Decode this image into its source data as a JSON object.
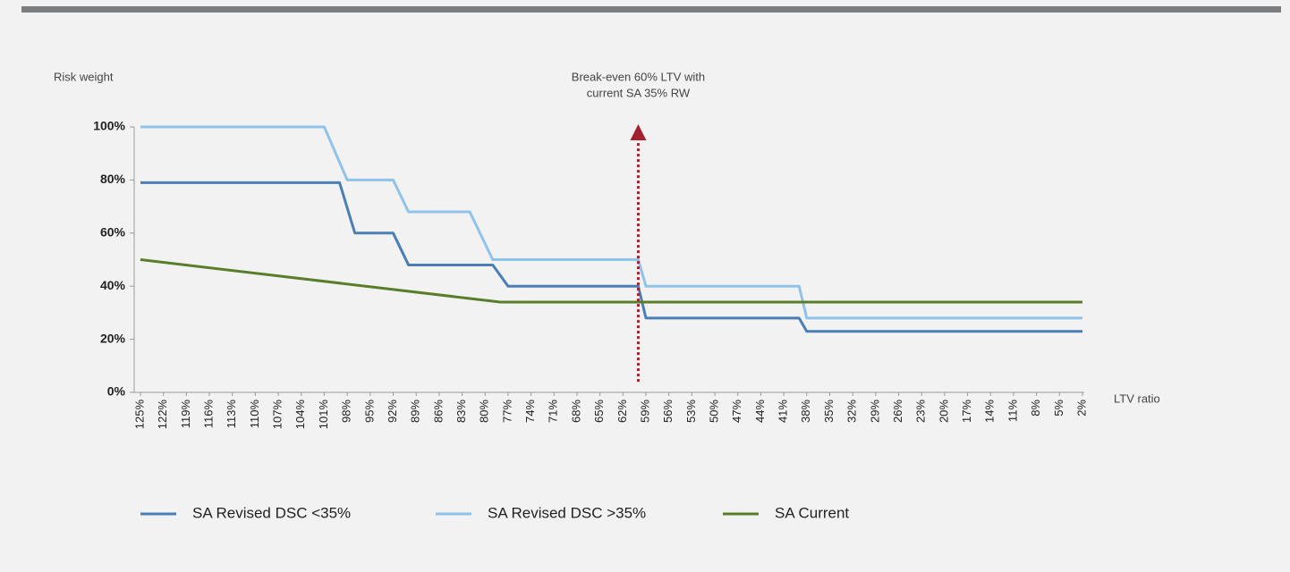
{
  "chart_data": {
    "type": "line",
    "y_label": "Risk weight",
    "x_label": "LTV ratio",
    "annotation": {
      "text": [
        "Break-even 60% LTV with",
        "current SA 35% RW"
      ],
      "x": 60,
      "y": [
        4,
        101
      ],
      "color": "#a3202f"
    },
    "xlim": [
      125,
      2
    ],
    "xticks": [
      {
        "value": 125,
        "label": "125%"
      },
      {
        "value": 122,
        "label": "122%"
      },
      {
        "value": 119,
        "label": "119%"
      },
      {
        "value": 116,
        "label": "116%"
      },
      {
        "value": 113,
        "label": "113%"
      },
      {
        "value": 110,
        "label": "110%"
      },
      {
        "value": 107,
        "label": "107%"
      },
      {
        "value": 104,
        "label": "104%"
      },
      {
        "value": 101,
        "label": "101%"
      },
      {
        "value": 98,
        "label": "98%"
      },
      {
        "value": 95,
        "label": "95%"
      },
      {
        "value": 92,
        "label": "92%"
      },
      {
        "value": 89,
        "label": "89%"
      },
      {
        "value": 86,
        "label": "86%"
      },
      {
        "value": 83,
        "label": "83%"
      },
      {
        "value": 80,
        "label": "80%"
      },
      {
        "value": 77,
        "label": "77%"
      },
      {
        "value": 74,
        "label": "74%"
      },
      {
        "value": 71,
        "label": "71%"
      },
      {
        "value": 68,
        "label": "68%"
      },
      {
        "value": 65,
        "label": "65%"
      },
      {
        "value": 62,
        "label": "62%"
      },
      {
        "value": 59,
        "label": "59%"
      },
      {
        "value": 56,
        "label": "56%"
      },
      {
        "value": 53,
        "label": "53%"
      },
      {
        "value": 50,
        "label": "50%"
      },
      {
        "value": 47,
        "label": "47%"
      },
      {
        "value": 44,
        "label": "44%"
      },
      {
        "value": 41,
        "label": "41%"
      },
      {
        "value": 38,
        "label": "38%"
      },
      {
        "value": 35,
        "label": "35%"
      },
      {
        "value": 32,
        "label": "32%"
      },
      {
        "value": 29,
        "label": "29%"
      },
      {
        "value": 26,
        "label": "26%"
      },
      {
        "value": 23,
        "label": "23%"
      },
      {
        "value": 20,
        "label": "20%"
      },
      {
        "value": 17,
        "label": "17%"
      },
      {
        "value": 14,
        "label": "14%"
      },
      {
        "value": 11,
        "label": "11%"
      },
      {
        "value": 8,
        "label": "8%"
      },
      {
        "value": 5,
        "label": "5%"
      },
      {
        "value": 2,
        "label": "2%"
      }
    ],
    "ylim": [
      0,
      100
    ],
    "yticks": [
      {
        "value": 0,
        "label": "0%"
      },
      {
        "value": 20,
        "label": "20%"
      },
      {
        "value": 40,
        "label": "40%"
      },
      {
        "value": 60,
        "label": "60%"
      },
      {
        "value": 80,
        "label": "80%"
      },
      {
        "value": 100,
        "label": "100%"
      }
    ],
    "series": [
      {
        "name": "SA Revised DSC <35%",
        "color": "#4a7fb5",
        "x": [
          125,
          99,
          97,
          92,
          90,
          79,
          77,
          60,
          59,
          39,
          38,
          2
        ],
        "values": [
          79,
          79,
          60,
          60,
          48,
          48,
          40,
          40,
          28,
          28,
          23,
          23
        ]
      },
      {
        "name": "SA Revised DSC >35%",
        "color": "#8fc3ea",
        "x": [
          125,
          101,
          98,
          92,
          90,
          82,
          79,
          60,
          59,
          39,
          38,
          2
        ],
        "values": [
          100,
          100,
          80,
          80,
          68,
          68,
          50,
          50,
          40,
          40,
          28,
          28
        ]
      },
      {
        "name": "SA Current",
        "color": "#5a7d2a",
        "x": [
          125,
          78,
          2
        ],
        "values": [
          50,
          34,
          34
        ]
      }
    ]
  }
}
